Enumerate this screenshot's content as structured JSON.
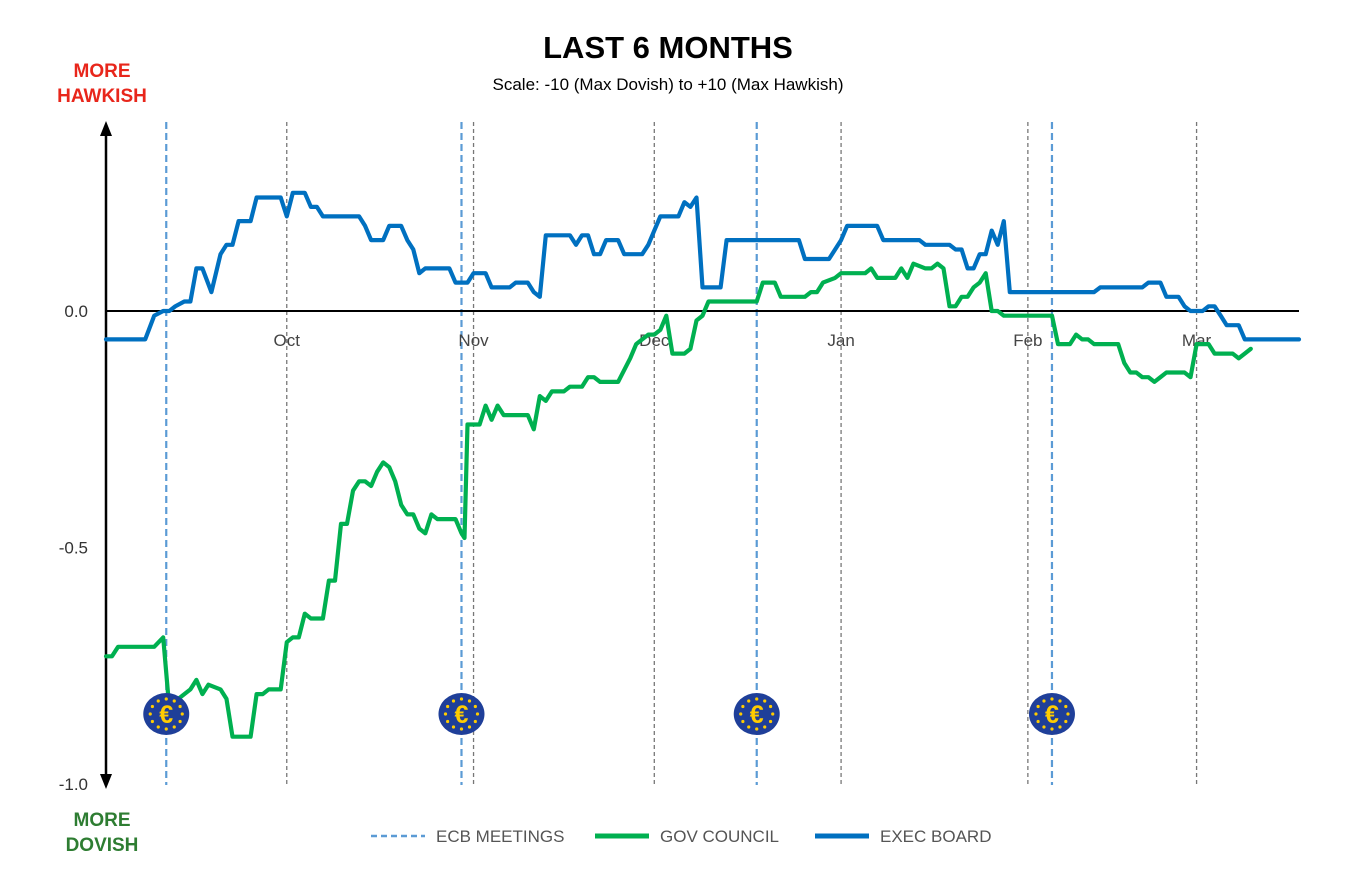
{
  "header": {
    "title": "LAST 6 MONTHS",
    "subtitle": "Scale: -10 (Max Dovish)  to +10 (Max Hawkish)"
  },
  "labels": {
    "hawkish_line1": "MORE",
    "hawkish_line2": "HAWKISH",
    "dovish_line1": "MORE",
    "dovish_line2": "DOVISH"
  },
  "colors": {
    "gov_council": "#00b050",
    "exec_board": "#0070c0",
    "ecb_meetings": "#5b9bd5",
    "month_gridline": "#777777",
    "hawkish": "#e8261b",
    "dovish": "#2e7d32",
    "euro_badge": "#1f3f99",
    "euro_symbol": "#ffcc00"
  },
  "chart_data": {
    "type": "line",
    "title": "LAST 6 MONTHS",
    "subtitle": "Scale: -10 (Max Dovish)  to +10 (Max Hawkish)",
    "x_unit": "days since Sep 1",
    "x_range": [
      0,
      198
    ],
    "ylim": [
      -1.0,
      0.4
    ],
    "y_ticks": [
      0.0,
      -0.5,
      -1.0
    ],
    "y_tick_labels": [
      "0.0",
      "-0.5",
      "-1.0"
    ],
    "month_ticks": [
      {
        "label": "Oct",
        "day": 30
      },
      {
        "label": "Nov",
        "day": 61
      },
      {
        "label": "Dec",
        "day": 91
      },
      {
        "label": "Jan",
        "day": 122
      },
      {
        "label": "Feb",
        "day": 153
      },
      {
        "label": "Mar",
        "day": 181
      }
    ],
    "ecb_meetings": [
      10,
      59,
      108,
      157
    ],
    "legend": [
      "ECB MEETINGS",
      "GOV COUNCIL",
      "EXEC BOARD"
    ],
    "series": [
      {
        "name": "EXEC BOARD",
        "points": [
          [
            0,
            -0.06
          ],
          [
            6.5,
            -0.06
          ],
          [
            8,
            -0.01
          ],
          [
            9.5,
            0.0
          ],
          [
            10.5,
            0.0
          ],
          [
            11.5,
            0.01
          ],
          [
            13,
            0.02
          ],
          [
            14,
            0.02
          ],
          [
            15,
            0.09
          ],
          [
            16,
            0.09
          ],
          [
            17.5,
            0.04
          ],
          [
            19,
            0.12
          ],
          [
            20,
            0.14
          ],
          [
            21,
            0.14
          ],
          [
            22,
            0.19
          ],
          [
            24,
            0.19
          ],
          [
            25,
            0.24
          ],
          [
            29,
            0.24
          ],
          [
            30,
            0.2
          ],
          [
            31,
            0.25
          ],
          [
            33,
            0.25
          ],
          [
            34,
            0.22
          ],
          [
            35,
            0.22
          ],
          [
            36,
            0.2
          ],
          [
            42,
            0.2
          ],
          [
            43,
            0.18
          ],
          [
            44,
            0.15
          ],
          [
            46,
            0.15
          ],
          [
            47,
            0.18
          ],
          [
            49,
            0.18
          ],
          [
            50,
            0.15
          ],
          [
            51,
            0.13
          ],
          [
            52,
            0.08
          ],
          [
            53,
            0.09
          ],
          [
            57,
            0.09
          ],
          [
            58,
            0.06
          ],
          [
            60,
            0.06
          ],
          [
            61,
            0.08
          ],
          [
            63,
            0.08
          ],
          [
            64,
            0.05
          ],
          [
            67,
            0.05
          ],
          [
            68,
            0.06
          ],
          [
            70,
            0.06
          ],
          [
            71,
            0.04
          ],
          [
            72,
            0.03
          ],
          [
            73,
            0.16
          ],
          [
            77,
            0.16
          ],
          [
            78,
            0.14
          ],
          [
            79,
            0.16
          ],
          [
            80,
            0.16
          ],
          [
            81,
            0.12
          ],
          [
            82,
            0.12
          ],
          [
            83,
            0.15
          ],
          [
            85,
            0.15
          ],
          [
            86,
            0.12
          ],
          [
            89,
            0.12
          ],
          [
            90,
            0.14
          ],
          [
            91,
            0.17
          ],
          [
            92,
            0.2
          ],
          [
            95,
            0.2
          ],
          [
            96,
            0.23
          ],
          [
            97,
            0.22
          ],
          [
            98,
            0.24
          ],
          [
            99,
            0.05
          ],
          [
            102,
            0.05
          ],
          [
            103,
            0.15
          ],
          [
            113,
            0.15
          ],
          [
            114,
            0.15
          ],
          [
            115,
            0.15
          ],
          [
            116,
            0.11
          ],
          [
            120,
            0.11
          ],
          [
            121,
            0.13
          ],
          [
            122,
            0.15
          ],
          [
            123,
            0.18
          ],
          [
            128,
            0.18
          ],
          [
            129,
            0.15
          ],
          [
            135,
            0.15
          ],
          [
            136,
            0.14
          ],
          [
            140,
            0.14
          ],
          [
            141,
            0.13
          ],
          [
            142,
            0.13
          ],
          [
            143,
            0.09
          ],
          [
            144,
            0.09
          ],
          [
            145,
            0.12
          ],
          [
            146,
            0.12
          ],
          [
            147,
            0.17
          ],
          [
            148,
            0.14
          ],
          [
            149,
            0.19
          ],
          [
            150,
            0.04
          ],
          [
            155,
            0.04
          ],
          [
            156,
            0.04
          ],
          [
            157,
            0.04
          ],
          [
            164,
            0.04
          ],
          [
            165,
            0.05
          ],
          [
            172,
            0.05
          ],
          [
            173,
            0.06
          ],
          [
            175,
            0.06
          ],
          [
            176,
            0.03
          ],
          [
            178,
            0.03
          ],
          [
            179,
            0.01
          ],
          [
            180,
            0.0
          ],
          [
            182,
            0.0
          ],
          [
            183,
            0.01
          ],
          [
            184,
            0.01
          ],
          [
            185,
            -0.01
          ],
          [
            186,
            -0.03
          ],
          [
            188,
            -0.03
          ],
          [
            189,
            -0.06
          ],
          [
            198,
            -0.06
          ]
        ]
      },
      {
        "name": "GOV COUNCIL",
        "points": [
          [
            0,
            -0.73
          ],
          [
            1,
            -0.73
          ],
          [
            2,
            -0.71
          ],
          [
            8,
            -0.71
          ],
          [
            9.5,
            -0.69
          ],
          [
            10.5,
            -0.84
          ],
          [
            12,
            -0.82
          ],
          [
            14,
            -0.8
          ],
          [
            15,
            -0.78
          ],
          [
            16,
            -0.81
          ],
          [
            17,
            -0.79
          ],
          [
            19,
            -0.8
          ],
          [
            20,
            -0.82
          ],
          [
            21,
            -0.9
          ],
          [
            24,
            -0.9
          ],
          [
            25,
            -0.81
          ],
          [
            26,
            -0.81
          ],
          [
            27,
            -0.8
          ],
          [
            29,
            -0.8
          ],
          [
            30,
            -0.7
          ],
          [
            31,
            -0.69
          ],
          [
            32,
            -0.69
          ],
          [
            33,
            -0.64
          ],
          [
            34,
            -0.65
          ],
          [
            36,
            -0.65
          ],
          [
            37,
            -0.57
          ],
          [
            38,
            -0.57
          ],
          [
            39,
            -0.45
          ],
          [
            40,
            -0.45
          ],
          [
            41,
            -0.38
          ],
          [
            42,
            -0.36
          ],
          [
            43,
            -0.36
          ],
          [
            44,
            -0.37
          ],
          [
            45,
            -0.34
          ],
          [
            46,
            -0.32
          ],
          [
            47,
            -0.33
          ],
          [
            48,
            -0.36
          ],
          [
            49,
            -0.41
          ],
          [
            50,
            -0.43
          ],
          [
            51,
            -0.43
          ],
          [
            52,
            -0.46
          ],
          [
            53,
            -0.47
          ],
          [
            54,
            -0.43
          ],
          [
            55,
            -0.44
          ],
          [
            58,
            -0.44
          ],
          [
            59,
            -0.47
          ],
          [
            59.5,
            -0.48
          ],
          [
            60,
            -0.24
          ],
          [
            62,
            -0.24
          ],
          [
            63,
            -0.2
          ],
          [
            64,
            -0.23
          ],
          [
            65,
            -0.2
          ],
          [
            66,
            -0.22
          ],
          [
            70,
            -0.22
          ],
          [
            71,
            -0.25
          ],
          [
            72,
            -0.18
          ],
          [
            73,
            -0.19
          ],
          [
            74,
            -0.17
          ],
          [
            76,
            -0.17
          ],
          [
            77,
            -0.16
          ],
          [
            79,
            -0.16
          ],
          [
            80,
            -0.14
          ],
          [
            81,
            -0.14
          ],
          [
            82,
            -0.15
          ],
          [
            85,
            -0.15
          ],
          [
            87,
            -0.1
          ],
          [
            88,
            -0.07
          ],
          [
            89,
            -0.06
          ],
          [
            90,
            -0.05
          ],
          [
            91,
            -0.05
          ],
          [
            92,
            -0.04
          ],
          [
            93,
            -0.01
          ],
          [
            94,
            -0.09
          ],
          [
            96,
            -0.09
          ],
          [
            97,
            -0.08
          ],
          [
            98,
            -0.02
          ],
          [
            99,
            -0.01
          ],
          [
            100,
            0.02
          ],
          [
            105,
            0.02
          ],
          [
            108,
            0.02
          ],
          [
            109,
            0.06
          ],
          [
            111,
            0.06
          ],
          [
            112,
            0.03
          ],
          [
            116,
            0.03
          ],
          [
            117,
            0.04
          ],
          [
            118,
            0.04
          ],
          [
            119,
            0.06
          ],
          [
            121,
            0.07
          ],
          [
            122,
            0.08
          ],
          [
            126,
            0.08
          ],
          [
            127,
            0.09
          ],
          [
            128,
            0.07
          ],
          [
            131,
            0.07
          ],
          [
            132,
            0.09
          ],
          [
            133,
            0.07
          ],
          [
            134,
            0.1
          ],
          [
            136,
            0.09
          ],
          [
            137,
            0.09
          ],
          [
            138,
            0.1
          ],
          [
            139,
            0.09
          ],
          [
            140,
            0.01
          ],
          [
            141,
            0.01
          ],
          [
            142,
            0.03
          ],
          [
            143,
            0.03
          ],
          [
            144,
            0.05
          ],
          [
            145,
            0.06
          ],
          [
            146,
            0.08
          ],
          [
            147,
            0.0
          ],
          [
            148,
            0.0
          ],
          [
            149,
            -0.01
          ],
          [
            157,
            -0.01
          ],
          [
            158,
            -0.07
          ],
          [
            160,
            -0.07
          ],
          [
            161,
            -0.05
          ],
          [
            162,
            -0.06
          ],
          [
            163,
            -0.06
          ],
          [
            164,
            -0.07
          ],
          [
            168,
            -0.07
          ],
          [
            169,
            -0.11
          ],
          [
            170,
            -0.13
          ],
          [
            171,
            -0.13
          ],
          [
            172,
            -0.14
          ],
          [
            173,
            -0.14
          ],
          [
            174,
            -0.15
          ],
          [
            175,
            -0.14
          ],
          [
            176,
            -0.13
          ],
          [
            179,
            -0.13
          ],
          [
            180,
            -0.14
          ],
          [
            181,
            -0.07
          ],
          [
            183,
            -0.07
          ],
          [
            184,
            -0.09
          ],
          [
            186,
            -0.09
          ],
          [
            187,
            -0.09
          ],
          [
            188,
            -0.1
          ],
          [
            189,
            -0.09
          ],
          [
            190,
            -0.08
          ]
        ]
      }
    ]
  }
}
